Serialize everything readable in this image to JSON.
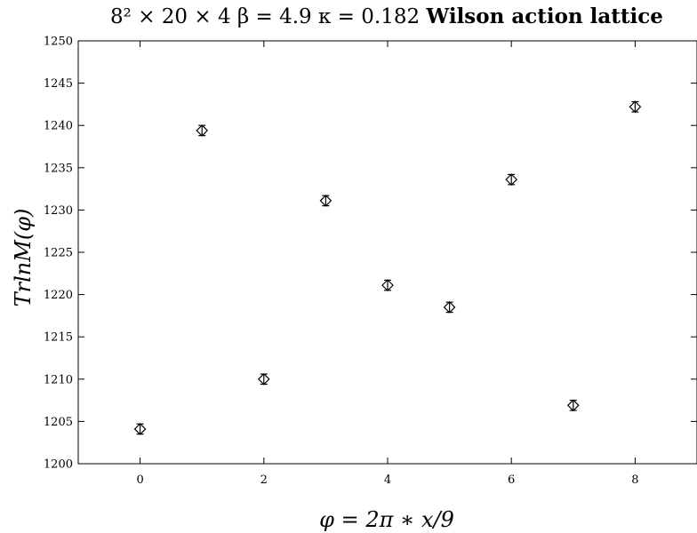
{
  "chart_data": {
    "type": "scatter",
    "title": "8² × 20 × 4 β = 4.9 κ = 0.182 Wilson action lattice",
    "title_math": "8² × 20 × 4 β = 4.9 κ = 0.182",
    "title_bold": "Wilson action lattice",
    "xlabel": "φ = 2π ∗ x/9",
    "ylabel": "TrlnM(φ)",
    "xlim": [
      -1,
      9
    ],
    "ylim": [
      1200,
      1250
    ],
    "x_ticks": [
      "0",
      "2",
      "4",
      "6",
      "8"
    ],
    "y_ticks": [
      "1200",
      "1205",
      "1210",
      "1215",
      "1220",
      "1225",
      "1230",
      "1235",
      "1240",
      "1245",
      "1250"
    ],
    "grid": false,
    "marker": "diamond-with-errorbars",
    "x": [
      0,
      1,
      2,
      3,
      4,
      5,
      6,
      7,
      8
    ],
    "y": [
      1204.1,
      1239.4,
      1210.0,
      1231.1,
      1221.1,
      1218.5,
      1233.6,
      1206.9,
      1242.2
    ],
    "yerr": [
      0.6,
      0.6,
      0.6,
      0.6,
      0.6,
      0.6,
      0.6,
      0.6,
      0.6
    ]
  }
}
